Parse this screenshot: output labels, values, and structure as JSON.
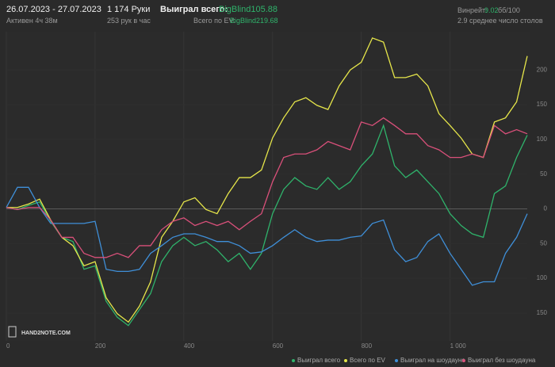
{
  "header": {
    "date_range": "26.07.2023 - 27.07.2023",
    "active": "Активен 4ч 38м",
    "hands": "1 174 Руки",
    "hands_per_hour": "253 рук в час",
    "won_label": "Выиграл всего:",
    "won_value": "BigBlind105.88",
    "ev_label": "Всего по EV:",
    "ev_value": "BigBlind219.68",
    "winrate_label": "Винрейт:",
    "winrate_value": "9.02",
    "winrate_unit": "бб/100",
    "avg_tables": "2.9 среднее число столов"
  },
  "watermark": "HAND2NOTE.COM",
  "chart_data": {
    "type": "line",
    "x": [
      0,
      25,
      50,
      75,
      100,
      125,
      150,
      175,
      200,
      225,
      250,
      275,
      300,
      325,
      350,
      375,
      400,
      425,
      450,
      475,
      500,
      525,
      550,
      575,
      600,
      625,
      650,
      675,
      700,
      725,
      750,
      775,
      800,
      825,
      850,
      875,
      900,
      925,
      950,
      975,
      1000,
      1025,
      1050,
      1075,
      1100,
      1125,
      1150,
      1174
    ],
    "xlim": [
      0,
      1174
    ],
    "ylim": [
      -190,
      255
    ],
    "xticks": [
      0,
      200,
      400,
      600,
      800,
      {
        "value": 1000,
        "label": "1 000"
      }
    ],
    "yticks": [
      {
        "value": -150,
        "label": "150"
      },
      {
        "value": -100,
        "label": "100"
      },
      {
        "value": -50,
        "label": "50"
      },
      0,
      50,
      100,
      150,
      200
    ],
    "grid": true,
    "series": [
      {
        "name": "Выиграл всего",
        "color": "#2fb36b",
        "values": [
          2,
          -1,
          5,
          10,
          -18,
          -41,
          -47,
          -87,
          -82,
          -133,
          -156,
          -168,
          -145,
          -122,
          -76,
          -53,
          -41,
          -53,
          -47,
          -59,
          -76,
          -64,
          -87,
          -64,
          -7,
          28,
          45,
          33,
          28,
          45,
          28,
          39,
          62,
          79,
          120,
          62,
          45,
          56,
          39,
          22,
          -7,
          -24,
          -36,
          -41,
          22,
          33,
          74,
          106
        ]
      },
      {
        "name": "Всего по EV",
        "color": "#e6e64a",
        "values": [
          2,
          2,
          7,
          14,
          -16,
          -41,
          -53,
          -82,
          -76,
          -128,
          -151,
          -163,
          -140,
          -105,
          -41,
          -18,
          10,
          16,
          -1,
          -7,
          22,
          45,
          45,
          56,
          102,
          131,
          154,
          160,
          149,
          143,
          177,
          200,
          211,
          246,
          240,
          189,
          189,
          194,
          177,
          137,
          120,
          102,
          79,
          74,
          125,
          131,
          154,
          220
        ]
      },
      {
        "name": "Выиграл на шоудауне",
        "color": "#3f8fd8",
        "values": [
          2,
          31,
          31,
          2,
          -21,
          -21,
          -21,
          -21,
          -18,
          -87,
          -90,
          -90,
          -87,
          -64,
          -53,
          -41,
          -36,
          -36,
          -41,
          -47,
          -47,
          -53,
          -64,
          -62,
          -53,
          -41,
          -30,
          -41,
          -47,
          -45,
          -45,
          -41,
          -39,
          -21,
          -16,
          -59,
          -76,
          -70,
          -47,
          -36,
          -64,
          -87,
          -110,
          -105,
          -105,
          -64,
          -41,
          -7
        ]
      },
      {
        "name": "Выиграл без шоудауна",
        "color": "#d9507a",
        "values": [
          2,
          -1,
          2,
          2,
          -16,
          -41,
          -41,
          -64,
          -70,
          -70,
          -64,
          -70,
          -53,
          -53,
          -30,
          -18,
          -13,
          -24,
          -18,
          -24,
          -18,
          -30,
          -18,
          -7,
          39,
          74,
          79,
          79,
          85,
          97,
          91,
          85,
          125,
          120,
          131,
          120,
          108,
          108,
          91,
          85,
          74,
          74,
          79,
          74,
          120,
          108,
          114,
          108
        ]
      }
    ]
  }
}
